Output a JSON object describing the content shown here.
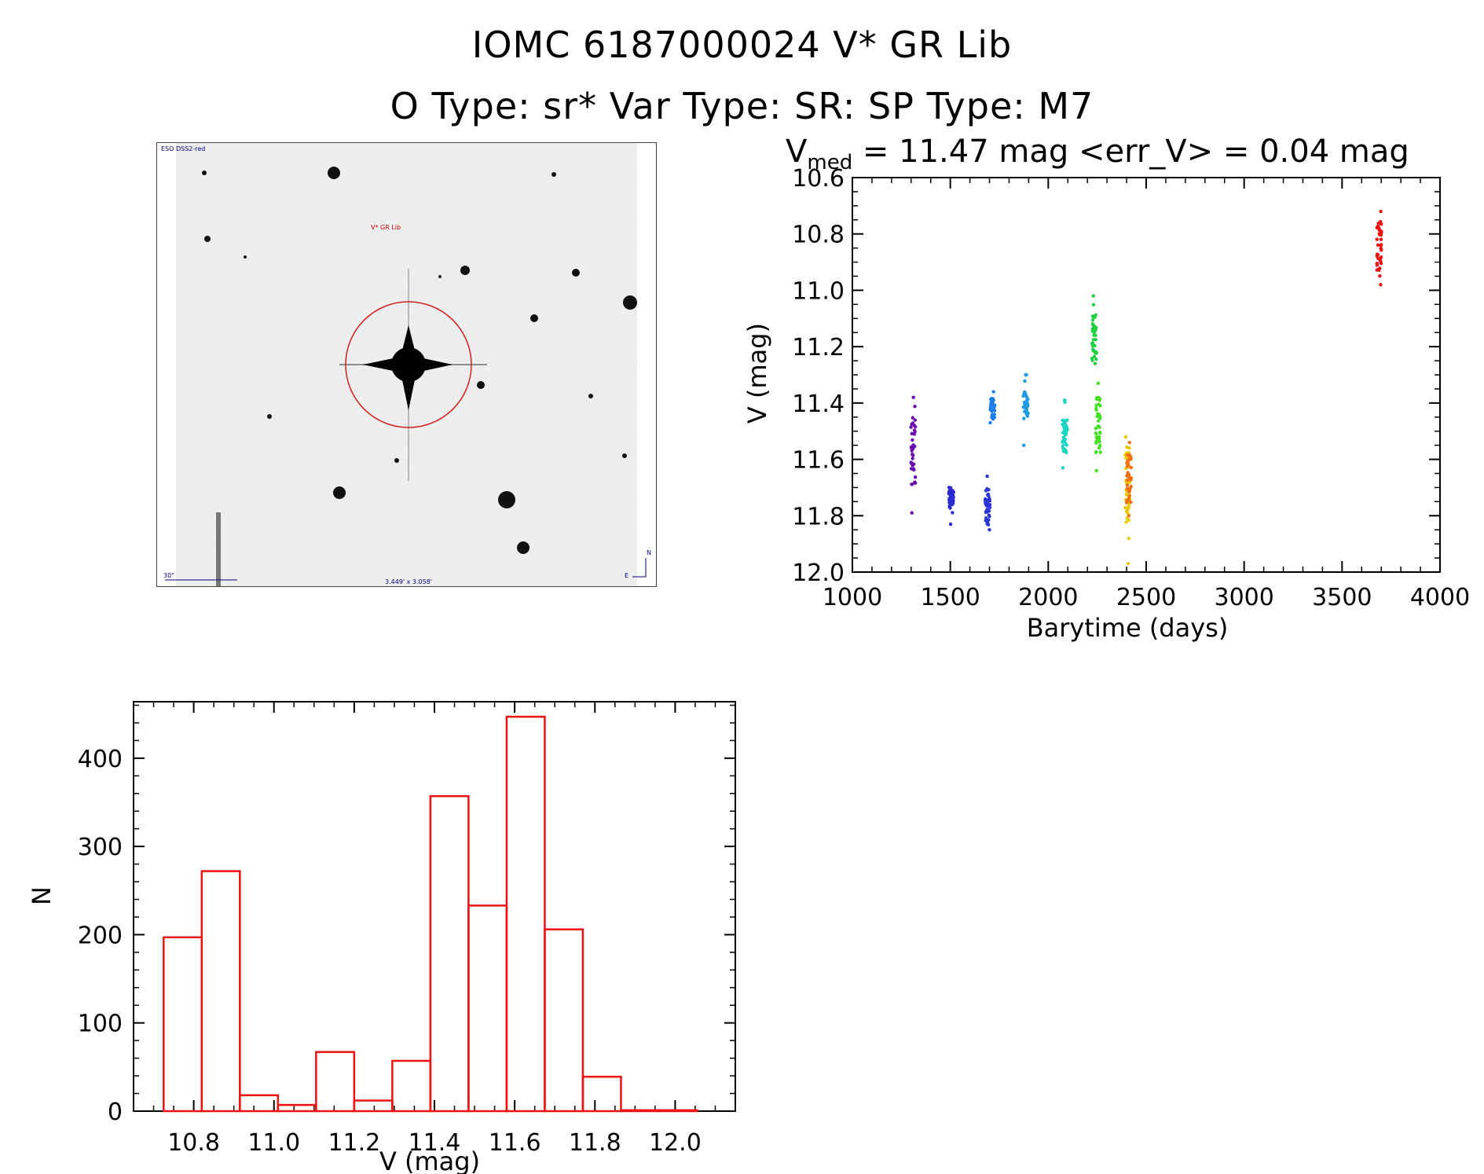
{
  "header": {
    "line1": "IOMC 6187000024    V* GR Lib",
    "line2": "O Type: sr*  Var Type: SR:  SP Type: M7"
  },
  "finder_chart": {
    "survey": "ESO DSS2-red",
    "target_label": "V* GR Lib",
    "scale_label": "30\"",
    "fov_label": "3.449' x 3.058'",
    "north": "N",
    "east": "E"
  },
  "chart_data": [
    {
      "type": "scatter",
      "title_prefix": "V",
      "title_sub": "med",
      "title_rest": " = 11.47 mag <err_V> = 0.04 mag",
      "xlabel": "Barytime (days)",
      "ylabel": "V (mag)",
      "xlim": [
        1000,
        4000
      ],
      "ylim": [
        12.0,
        10.6
      ],
      "y_inverted": true,
      "xticks": [
        1000,
        1500,
        2000,
        2500,
        3000,
        3500,
        4000
      ],
      "yticks": [
        "10.6",
        "10.8",
        "11.0",
        "11.2",
        "11.4",
        "11.6",
        "11.8",
        "12.0"
      ],
      "series": [
        {
          "name": "group1",
          "color": "#6a0dad",
          "x": 1310,
          "ymin": 11.38,
          "ymax": 11.79,
          "dense": [
            11.44,
            11.7
          ]
        },
        {
          "name": "group2",
          "color": "#2a2ad0",
          "x": 1505,
          "ymin": 11.7,
          "ymax": 11.83,
          "dense": [
            11.71,
            11.78
          ]
        },
        {
          "name": "group3",
          "color": "#2a35d8",
          "x": 1690,
          "ymin": 11.66,
          "ymax": 11.85,
          "dense": [
            11.7,
            11.83
          ]
        },
        {
          "name": "group4",
          "color": "#1e7ee8",
          "x": 1715,
          "ymin": 11.36,
          "ymax": 11.47,
          "dense": [
            11.38,
            11.46
          ]
        },
        {
          "name": "group5",
          "color": "#1f9be0",
          "x": 1885,
          "ymin": 11.3,
          "ymax": 11.55,
          "dense": [
            11.36,
            11.45
          ]
        },
        {
          "name": "group6",
          "color": "#19d4c0",
          "x": 2085,
          "ymin": 11.39,
          "ymax": 11.63,
          "dense": [
            11.46,
            11.58
          ]
        },
        {
          "name": "group7",
          "color": "#20d040",
          "x": 2235,
          "ymin": 11.02,
          "ymax": 11.26,
          "dense": [
            11.08,
            11.25
          ]
        },
        {
          "name": "group8",
          "color": "#45e020",
          "x": 2255,
          "ymin": 11.33,
          "ymax": 11.64,
          "dense": [
            11.36,
            11.58
          ]
        },
        {
          "name": "group9",
          "color": "#e8c800",
          "x": 2405,
          "ymin": 11.52,
          "ymax": 11.97,
          "dense": [
            11.55,
            11.83
          ]
        },
        {
          "name": "group10",
          "color": "#f07010",
          "x": 2412,
          "ymin": 11.54,
          "ymax": 11.8,
          "dense": [
            11.58,
            11.76
          ]
        },
        {
          "name": "group11",
          "color": "#ee1010",
          "x": 3690,
          "ymin": 10.72,
          "ymax": 10.98,
          "dense": [
            10.76,
            10.93
          ]
        }
      ]
    },
    {
      "type": "bar",
      "subtype": "histogram",
      "xlabel": "V (mag)",
      "ylabel": "N",
      "xlim": [
        10.65,
        12.15
      ],
      "ylim": [
        0,
        450
      ],
      "xticks": [
        "10.8",
        "11.0",
        "11.2",
        "11.4",
        "11.6",
        "11.8",
        "12.0"
      ],
      "yticks": [
        "0",
        "100",
        "200",
        "300",
        "400"
      ],
      "bin_edges": [
        10.725,
        10.82,
        10.915,
        11.01,
        11.105,
        11.2,
        11.295,
        11.39,
        11.485,
        11.58,
        11.675,
        11.77,
        11.865,
        11.96,
        12.055
      ],
      "values": [
        197,
        272,
        18,
        7,
        67,
        12,
        57,
        357,
        233,
        447,
        206,
        39,
        1,
        1
      ],
      "color": "#ee1111"
    }
  ]
}
